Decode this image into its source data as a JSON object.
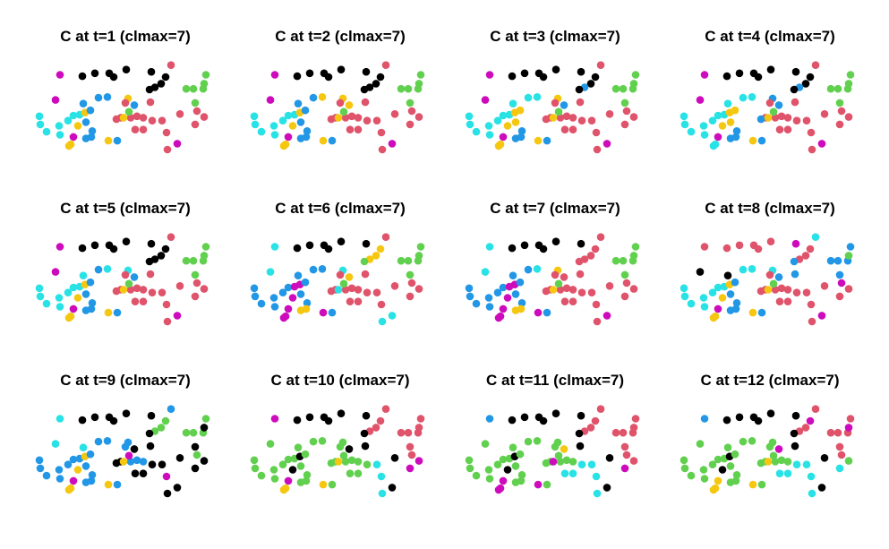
{
  "figure": {
    "grid": "3x4 small multiples",
    "xlim": [
      0,
      200
    ],
    "ylim": [
      0,
      150
    ],
    "axes_visible": false,
    "grid_lines": false
  },
  "palette": {
    "1": "#000000",
    "2": "#DF536B",
    "3": "#61D04F",
    "4": "#2297E6",
    "5": "#28E2E5",
    "6": "#CD0BBC",
    "7": "#F5C710"
  },
  "points": [
    {
      "id": 1,
      "x": 27,
      "y": 124
    },
    {
      "id": 2,
      "x": 52,
      "y": 122
    },
    {
      "id": 3,
      "x": 66,
      "y": 126
    },
    {
      "id": 4,
      "x": 82,
      "y": 126
    },
    {
      "id": 5,
      "x": 87,
      "y": 121
    },
    {
      "id": 6,
      "x": 101,
      "y": 131
    },
    {
      "id": 7,
      "x": 129,
      "y": 128
    },
    {
      "id": 8,
      "x": 151,
      "y": 137
    },
    {
      "id": 9,
      "x": 145,
      "y": 121
    },
    {
      "id": 10,
      "x": 140,
      "y": 112
    },
    {
      "id": 11,
      "x": 133,
      "y": 107
    },
    {
      "id": 12,
      "x": 127,
      "y": 104
    },
    {
      "id": 13,
      "x": 190,
      "y": 124
    },
    {
      "id": 14,
      "x": 168,
      "y": 105
    },
    {
      "id": 15,
      "x": 176,
      "y": 105
    },
    {
      "id": 16,
      "x": 187,
      "y": 105
    },
    {
      "id": 17,
      "x": 188,
      "y": 112
    },
    {
      "id": 18,
      "x": 178,
      "y": 86
    },
    {
      "id": 19,
      "x": 180,
      "y": 75
    },
    {
      "id": 20,
      "x": 22,
      "y": 90
    },
    {
      "id": 21,
      "x": 53,
      "y": 85
    },
    {
      "id": 22,
      "x": 70,
      "y": 93
    },
    {
      "id": 23,
      "x": 80,
      "y": 94
    },
    {
      "id": 24,
      "x": 103,
      "y": 92
    },
    {
      "id": 25,
      "x": 128,
      "y": 87
    },
    {
      "id": 26,
      "x": 110,
      "y": 83
    },
    {
      "id": 27,
      "x": 4,
      "y": 68
    },
    {
      "id": 28,
      "x": 5,
      "y": 57
    },
    {
      "id": 29,
      "x": 12,
      "y": 47
    },
    {
      "id": 30,
      "x": 27,
      "y": 43
    },
    {
      "id": 31,
      "x": 26,
      "y": 55
    },
    {
      "id": 32,
      "x": 36,
      "y": 62
    },
    {
      "id": 33,
      "x": 42,
      "y": 69
    },
    {
      "id": 34,
      "x": 49,
      "y": 70
    },
    {
      "id": 35,
      "x": 55,
      "y": 73
    },
    {
      "id": 36,
      "x": 47,
      "y": 55
    },
    {
      "id": 37,
      "x": 61,
      "y": 76
    },
    {
      "id": 38,
      "x": 56,
      "y": 60
    },
    {
      "id": 39,
      "x": 63,
      "y": 48
    },
    {
      "id": 40,
      "x": 62,
      "y": 40
    },
    {
      "id": 41,
      "x": 56,
      "y": 38
    },
    {
      "id": 42,
      "x": 42,
      "y": 40
    },
    {
      "id": 43,
      "x": 39,
      "y": 30
    },
    {
      "id": 44,
      "x": 37,
      "y": 28
    },
    {
      "id": 45,
      "x": 81,
      "y": 35
    },
    {
      "id": 46,
      "x": 95,
      "y": 66
    },
    {
      "id": 47,
      "x": 90,
      "y": 64
    },
    {
      "id": 48,
      "x": 106,
      "y": 66
    },
    {
      "id": 49,
      "x": 120,
      "y": 66
    },
    {
      "id": 50,
      "x": 130,
      "y": 62
    },
    {
      "id": 51,
      "x": 141,
      "y": 62
    },
    {
      "id": 52,
      "x": 146,
      "y": 46
    },
    {
      "id": 53,
      "x": 147,
      "y": 23
    },
    {
      "id": 54,
      "x": 158,
      "y": 31
    },
    {
      "id": 55,
      "x": 161,
      "y": 71
    },
    {
      "id": 56,
      "x": 178,
      "y": 57
    },
    {
      "id": 57,
      "x": 188,
      "y": 67
    },
    {
      "id": 58,
      "x": 91,
      "y": 35
    },
    {
      "id": 59,
      "x": 98,
      "y": 66
    },
    {
      "id": 60,
      "x": 100,
      "y": 86
    },
    {
      "id": 61,
      "x": 113,
      "y": 68
    },
    {
      "id": 62,
      "x": 111,
      "y": 50
    },
    {
      "id": 63,
      "x": 104,
      "y": 74
    },
    {
      "id": 64,
      "x": 120,
      "y": 50
    }
  ],
  "frames": [
    {
      "title": "C at t=1 (clmax=7)",
      "clusters": [
        6,
        1,
        1,
        1,
        1,
        1,
        1,
        2,
        1,
        1,
        1,
        1,
        3,
        3,
        3,
        3,
        3,
        3,
        2,
        6,
        4,
        4,
        4,
        7,
        2,
        4,
        5,
        5,
        5,
        5,
        5,
        5,
        5,
        5,
        7,
        7,
        4,
        4,
        4,
        4,
        4,
        6,
        7,
        7,
        7,
        2,
        2,
        2,
        2,
        2,
        2,
        2,
        2,
        6,
        2,
        2,
        2,
        4,
        7,
        2,
        2,
        2,
        3,
        2
      ]
    },
    {
      "title": "C at t=2 (clmax=7)",
      "clusters": [
        6,
        1,
        1,
        1,
        1,
        1,
        1,
        2,
        1,
        1,
        1,
        1,
        3,
        3,
        3,
        3,
        3,
        3,
        2,
        6,
        4,
        4,
        7,
        7,
        2,
        7,
        5,
        5,
        5,
        5,
        5,
        5,
        5,
        5,
        7,
        7,
        4,
        4,
        4,
        4,
        4,
        6,
        7,
        7,
        7,
        2,
        2,
        2,
        2,
        2,
        2,
        2,
        2,
        6,
        2,
        2,
        2,
        4,
        7,
        2,
        2,
        2,
        3,
        2
      ]
    },
    {
      "title": "C at t=3 (clmax=7)",
      "clusters": [
        6,
        1,
        1,
        1,
        1,
        1,
        1,
        2,
        1,
        1,
        4,
        1,
        3,
        3,
        3,
        3,
        3,
        3,
        2,
        6,
        5,
        5,
        5,
        7,
        2,
        4,
        5,
        5,
        5,
        5,
        5,
        5,
        5,
        5,
        7,
        7,
        7,
        7,
        4,
        4,
        4,
        6,
        7,
        7,
        7,
        2,
        2,
        2,
        2,
        2,
        2,
        2,
        2,
        6,
        2,
        2,
        2,
        4,
        7,
        2,
        2,
        2,
        3,
        2
      ]
    },
    {
      "title": "C at t=4 (clmax=7)",
      "clusters": [
        6,
        1,
        1,
        1,
        1,
        1,
        1,
        2,
        1,
        1,
        4,
        1,
        3,
        3,
        3,
        3,
        3,
        3,
        2,
        6,
        5,
        5,
        5,
        4,
        2,
        4,
        5,
        5,
        5,
        5,
        5,
        5,
        5,
        5,
        7,
        7,
        7,
        7,
        4,
        4,
        4,
        6,
        5,
        5,
        7,
        2,
        4,
        2,
        2,
        2,
        2,
        2,
        2,
        6,
        2,
        2,
        2,
        4,
        7,
        2,
        2,
        2,
        3,
        2
      ]
    },
    {
      "title": "C at t=5 (clmax=7)",
      "clusters": [
        6,
        1,
        1,
        1,
        1,
        1,
        1,
        2,
        1,
        1,
        1,
        1,
        3,
        3,
        3,
        3,
        3,
        3,
        2,
        6,
        5,
        4,
        5,
        5,
        2,
        4,
        5,
        5,
        5,
        5,
        5,
        5,
        5,
        5,
        7,
        7,
        4,
        4,
        4,
        4,
        4,
        6,
        7,
        7,
        7,
        2,
        2,
        2,
        2,
        2,
        2,
        2,
        2,
        6,
        2,
        2,
        2,
        4,
        7,
        2,
        2,
        2,
        3,
        2
      ]
    },
    {
      "title": "C at t=6 (clmax=7)",
      "clusters": [
        5,
        1,
        1,
        1,
        1,
        1,
        1,
        2,
        7,
        7,
        7,
        3,
        3,
        3,
        3,
        3,
        3,
        3,
        2,
        5,
        4,
        4,
        4,
        5,
        2,
        7,
        4,
        4,
        4,
        4,
        4,
        4,
        4,
        6,
        6,
        6,
        4,
        4,
        4,
        7,
        7,
        6,
        6,
        6,
        6,
        2,
        2,
        2,
        2,
        2,
        2,
        2,
        5,
        5,
        2,
        2,
        2,
        4,
        5,
        2,
        2,
        2,
        3,
        2
      ]
    },
    {
      "title": "C at t=7 (clmax=7)",
      "clusters": [
        5,
        1,
        1,
        1,
        1,
        1,
        1,
        2,
        2,
        2,
        2,
        2,
        3,
        3,
        3,
        3,
        3,
        3,
        2,
        5,
        4,
        4,
        5,
        7,
        2,
        2,
        4,
        4,
        4,
        4,
        4,
        4,
        4,
        6,
        6,
        6,
        4,
        4,
        4,
        7,
        7,
        6,
        6,
        6,
        6,
        2,
        2,
        2,
        2,
        2,
        2,
        2,
        2,
        6,
        2,
        2,
        2,
        4,
        7,
        2,
        2,
        2,
        3,
        2
      ]
    },
    {
      "title": "C at t=8 (clmax=7)",
      "clusters": [
        2,
        2,
        2,
        2,
        2,
        2,
        6,
        5,
        2,
        2,
        2,
        4,
        4,
        4,
        4,
        4,
        3,
        4,
        6,
        1,
        1,
        5,
        5,
        5,
        4,
        4,
        5,
        5,
        5,
        5,
        5,
        5,
        5,
        5,
        7,
        7,
        4,
        4,
        4,
        4,
        4,
        6,
        7,
        7,
        7,
        2,
        2,
        2,
        2,
        2,
        2,
        2,
        2,
        6,
        2,
        2,
        2,
        4,
        7,
        2,
        2,
        2,
        3,
        2
      ]
    },
    {
      "title": "C at t=9 (clmax=7)",
      "clusters": [
        5,
        1,
        1,
        1,
        1,
        1,
        1,
        4,
        3,
        3,
        3,
        1,
        3,
        3,
        3,
        3,
        1,
        1,
        3,
        5,
        5,
        4,
        4,
        4,
        1,
        1,
        4,
        4,
        4,
        4,
        4,
        4,
        4,
        4,
        7,
        7,
        4,
        4,
        4,
        4,
        4,
        6,
        7,
        7,
        7,
        1,
        1,
        4,
        4,
        1,
        1,
        6,
        1,
        1,
        1,
        1,
        1,
        4,
        7,
        4,
        4,
        1,
        6,
        1
      ]
    },
    {
      "title": "C at t=10 (clmax=7)",
      "clusters": [
        6,
        1,
        1,
        1,
        1,
        1,
        1,
        2,
        2,
        2,
        2,
        1,
        2,
        2,
        2,
        2,
        2,
        2,
        2,
        3,
        3,
        3,
        3,
        3,
        1,
        1,
        3,
        3,
        3,
        3,
        3,
        3,
        3,
        3,
        1,
        1,
        3,
        3,
        3,
        3,
        3,
        6,
        7,
        7,
        7,
        3,
        3,
        3,
        3,
        3,
        5,
        5,
        5,
        1,
        1,
        6,
        6,
        3,
        7,
        3,
        3,
        3,
        3,
        3
      ]
    },
    {
      "title": "C at t=11 (clmax=7)",
      "clusters": [
        4,
        1,
        1,
        1,
        1,
        1,
        1,
        2,
        2,
        2,
        2,
        1,
        2,
        2,
        2,
        2,
        2,
        2,
        2,
        3,
        3,
        3,
        3,
        3,
        1,
        7,
        3,
        3,
        3,
        3,
        3,
        3,
        3,
        3,
        1,
        1,
        3,
        3,
        3,
        3,
        3,
        6,
        6,
        6,
        6,
        3,
        3,
        3,
        3,
        5,
        5,
        5,
        5,
        1,
        1,
        6,
        2,
        3,
        6,
        3,
        3,
        5,
        3,
        5
      ]
    },
    {
      "title": "C at t=12 (clmax=7)",
      "clusters": [
        4,
        1,
        1,
        1,
        1,
        1,
        1,
        2,
        6,
        2,
        2,
        1,
        2,
        2,
        2,
        2,
        6,
        2,
        2,
        3,
        3,
        3,
        3,
        3,
        1,
        6,
        3,
        3,
        3,
        3,
        3,
        3,
        3,
        3,
        1,
        1,
        3,
        3,
        3,
        3,
        3,
        7,
        7,
        7,
        7,
        3,
        3,
        3,
        3,
        5,
        5,
        5,
        5,
        1,
        1,
        5,
        3,
        3,
        7,
        3,
        3,
        5,
        3,
        5
      ]
    }
  ]
}
